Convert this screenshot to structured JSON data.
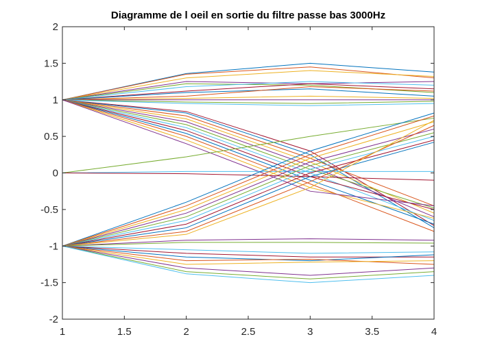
{
  "chart_data": {
    "type": "line",
    "title": "Diagramme de l oeil en sortie du filtre passe bas 3000Hz",
    "xlabel": "",
    "ylabel": "",
    "xlim": [
      1,
      4
    ],
    "ylim": [
      -2,
      2
    ],
    "xticks": [
      "1",
      "1.5",
      "2",
      "2.5",
      "3",
      "3.5",
      "4"
    ],
    "yticks": [
      "2",
      "1.5",
      "1",
      "0.5",
      "0",
      "-0.5",
      "-1",
      "-1.5",
      "-2"
    ],
    "grid": false,
    "legend": "none",
    "x": [
      1,
      2,
      3,
      4
    ],
    "colors": [
      "#0072BD",
      "#D95319",
      "#EDB120",
      "#7E2F8E",
      "#77AC30",
      "#4DBEEE",
      "#A2142F"
    ],
    "series": [
      {
        "values": [
          1,
          1.36,
          1.5,
          1.38
        ]
      },
      {
        "values": [
          1,
          1.35,
          1.45,
          1.3
        ]
      },
      {
        "values": [
          1,
          1.3,
          1.4,
          1.32
        ]
      },
      {
        "values": [
          1,
          1.25,
          1.22,
          1.25
        ]
      },
      {
        "values": [
          1,
          1.22,
          1.2,
          1.1
        ]
      },
      {
        "values": [
          1,
          1.18,
          1.25,
          1.2
        ]
      },
      {
        "values": [
          1,
          1.12,
          1.22,
          1.15
        ]
      },
      {
        "values": [
          1,
          1.1,
          1.15,
          1.05
        ]
      },
      {
        "values": [
          1,
          1.05,
          1.18,
          1.12
        ]
      },
      {
        "values": [
          1,
          1.02,
          1.05,
          1.02
        ]
      },
      {
        "values": [
          1,
          1.0,
          1.0,
          1.0
        ]
      },
      {
        "values": [
          1,
          0.97,
          0.95,
          0.98
        ]
      },
      {
        "values": [
          1,
          0.95,
          0.92,
          0.95
        ]
      },
      {
        "values": [
          1,
          0.84,
          0.3,
          -0.72
        ]
      },
      {
        "values": [
          1,
          0.82,
          0.25,
          -0.75
        ]
      },
      {
        "values": [
          1,
          0.78,
          0.2,
          -0.45
        ]
      },
      {
        "values": [
          1,
          0.74,
          0.15,
          -0.55
        ]
      },
      {
        "values": [
          1,
          0.7,
          0.1,
          -0.6
        ]
      },
      {
        "values": [
          1,
          0.66,
          0.05,
          -0.48
        ]
      },
      {
        "values": [
          1,
          0.62,
          0.0,
          -0.65
        ]
      },
      {
        "values": [
          1,
          0.58,
          -0.05,
          -0.5
        ]
      },
      {
        "values": [
          1,
          0.54,
          -0.1,
          -0.7
        ]
      },
      {
        "values": [
          1,
          0.5,
          -0.15,
          -0.8
        ]
      },
      {
        "values": [
          1,
          0.45,
          -0.2,
          -0.62
        ]
      },
      {
        "values": [
          1,
          0.4,
          -0.25,
          -0.45
        ]
      },
      {
        "values": [
          0,
          0.22,
          0.5,
          0.75
        ]
      },
      {
        "values": [
          0,
          0.02,
          0.02,
          0.02
        ]
      },
      {
        "values": [
          0,
          -0.01,
          -0.05,
          -0.1
        ]
      },
      {
        "values": [
          -1,
          -0.4,
          0.3,
          0.82
        ]
      },
      {
        "values": [
          -1,
          -0.45,
          0.25,
          0.78
        ]
      },
      {
        "values": [
          -1,
          -0.5,
          0.2,
          0.7
        ]
      },
      {
        "values": [
          -1,
          -0.55,
          0.15,
          0.6
        ]
      },
      {
        "values": [
          -1,
          -0.6,
          0.1,
          0.55
        ]
      },
      {
        "values": [
          -1,
          -0.65,
          0.05,
          0.5
        ]
      },
      {
        "values": [
          -1,
          -0.7,
          0.0,
          0.45
        ]
      },
      {
        "values": [
          -1,
          -0.75,
          -0.05,
          0.42
        ]
      },
      {
        "values": [
          -1,
          -0.8,
          -0.12,
          0.65
        ]
      },
      {
        "values": [
          -1,
          -0.84,
          -0.2,
          0.72
        ]
      },
      {
        "values": [
          -1,
          -0.92,
          -0.9,
          -0.92
        ]
      },
      {
        "values": [
          -1,
          -0.95,
          -0.95,
          -0.96
        ]
      },
      {
        "values": [
          -1,
          -1.05,
          -1.1,
          -1.08
        ]
      },
      {
        "values": [
          -1,
          -1.1,
          -1.15,
          -1.15
        ]
      },
      {
        "values": [
          -1,
          -1.15,
          -1.2,
          -1.12
        ]
      },
      {
        "values": [
          -1,
          -1.2,
          -1.18,
          -1.25
        ]
      },
      {
        "values": [
          -1,
          -1.25,
          -1.22,
          -1.2
        ]
      },
      {
        "values": [
          -1,
          -1.3,
          -1.4,
          -1.3
        ]
      },
      {
        "values": [
          -1,
          -1.35,
          -1.45,
          -1.35
        ]
      },
      {
        "values": [
          -1,
          -1.38,
          -1.5,
          -1.4
        ]
      }
    ]
  }
}
